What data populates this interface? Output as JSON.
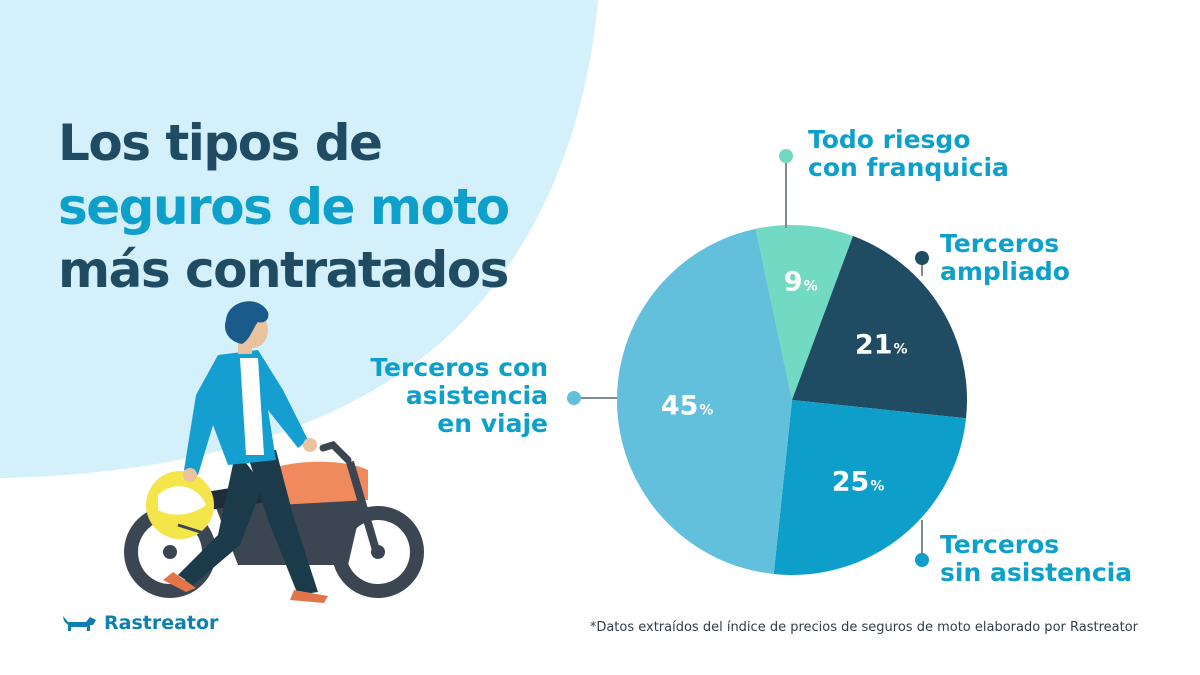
{
  "title": {
    "line1": "Los tipos de",
    "line2": "seguros de moto",
    "line3": "más contratados"
  },
  "colors": {
    "dark_navy": "#1f4b63",
    "bright_blue": "#0da0ca",
    "light_blue": "#62c0dd",
    "mint": "#72d9c3",
    "bg_blob": "#d3f0fb"
  },
  "chart_data": {
    "type": "pie",
    "slices": [
      {
        "name": "Todo riesgo con franquicia",
        "label_lines": [
          "Todo riesgo",
          "con franquicia"
        ],
        "value": 9,
        "value_label": "9",
        "color": "#72d9c3"
      },
      {
        "name": "Terceros ampliado",
        "label_lines": [
          "Terceros",
          "ampliado"
        ],
        "value": 21,
        "value_label": "21",
        "color": "#1f4b63"
      },
      {
        "name": "Terceros sin asistencia",
        "label_lines": [
          "Terceros",
          "sin asistencia"
        ],
        "value": 25,
        "value_label": "25",
        "color": "#0d9fc9"
      },
      {
        "name": "Terceros con asistencia en viaje",
        "label_lines": [
          "Terceros con",
          "asistencia",
          "en viaje"
        ],
        "value": 45,
        "value_label": "45",
        "color": "#62c0dd"
      }
    ],
    "unit": "%"
  },
  "logo": {
    "text": "Rastreator",
    "icon": "dachshund-dog-icon"
  },
  "footnote": "*Datos extraídos del índice de precios de seguros de moto elaborado por Rastreator",
  "illustration": {
    "icon": "motorcycle-rider-illustration"
  }
}
